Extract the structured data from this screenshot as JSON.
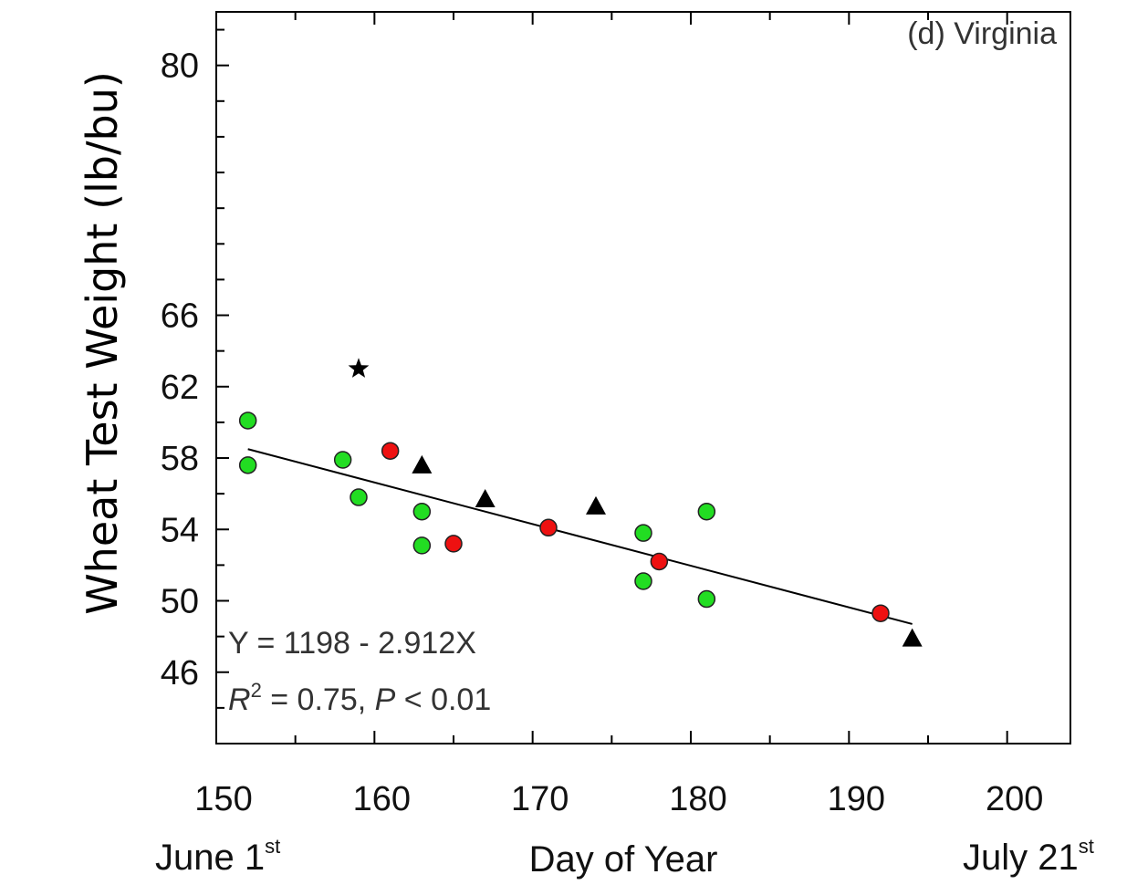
{
  "chart_data": {
    "type": "scatter",
    "panel_label": "(d) Virginia",
    "xlabel": "Day of Year",
    "ylabel": "Wheat Test Weight (lb/bu)",
    "xlim": [
      150,
      204
    ],
    "ylim": [
      42,
      83
    ],
    "x_ticks": [
      150,
      160,
      170,
      180,
      190,
      200
    ],
    "x_tick_labels": [
      "150",
      "160",
      "170",
      "180",
      "190",
      "200"
    ],
    "y_ticks": [
      46,
      50,
      54,
      58,
      62,
      66,
      80
    ],
    "y_tick_labels": [
      "46",
      "50",
      "54",
      "58",
      "62",
      "66",
      "80"
    ],
    "x_notes": [
      {
        "text": "June 1",
        "sup": "st"
      },
      {
        "text": "July 21",
        "sup": "st"
      }
    ],
    "equation": "Y = 1198 - 2.912X",
    "stats": {
      "r_label": "R",
      "r_sup": "2",
      "r_value": " = 0.75, ",
      "p_label": "P",
      "p_value": " < 0.01"
    },
    "series": [
      {
        "marker": "circle",
        "color": "#22dd22",
        "points": [
          [
            152,
            60.1
          ],
          [
            152,
            57.6
          ],
          [
            158,
            57.9
          ],
          [
            159,
            55.8
          ],
          [
            163,
            55.0
          ],
          [
            163,
            53.1
          ],
          [
            177,
            53.8
          ],
          [
            177,
            51.1
          ],
          [
            181,
            55.0
          ],
          [
            181,
            50.1
          ]
        ]
      },
      {
        "marker": "circle",
        "color": "#ee1111",
        "points": [
          [
            161,
            58.4
          ],
          [
            165,
            53.2
          ],
          [
            171,
            54.1
          ],
          [
            178,
            52.2
          ],
          [
            192,
            49.3
          ]
        ]
      },
      {
        "marker": "triangle",
        "color": "#000000",
        "points": [
          [
            163,
            57.6
          ],
          [
            167,
            55.7
          ],
          [
            174,
            55.3
          ],
          [
            194,
            47.9
          ]
        ]
      },
      {
        "marker": "star",
        "color": "#000000",
        "points": [
          [
            159,
            63.0
          ]
        ]
      }
    ],
    "trendline": {
      "x": [
        152,
        194
      ],
      "y": [
        58.5,
        48.7
      ]
    }
  }
}
